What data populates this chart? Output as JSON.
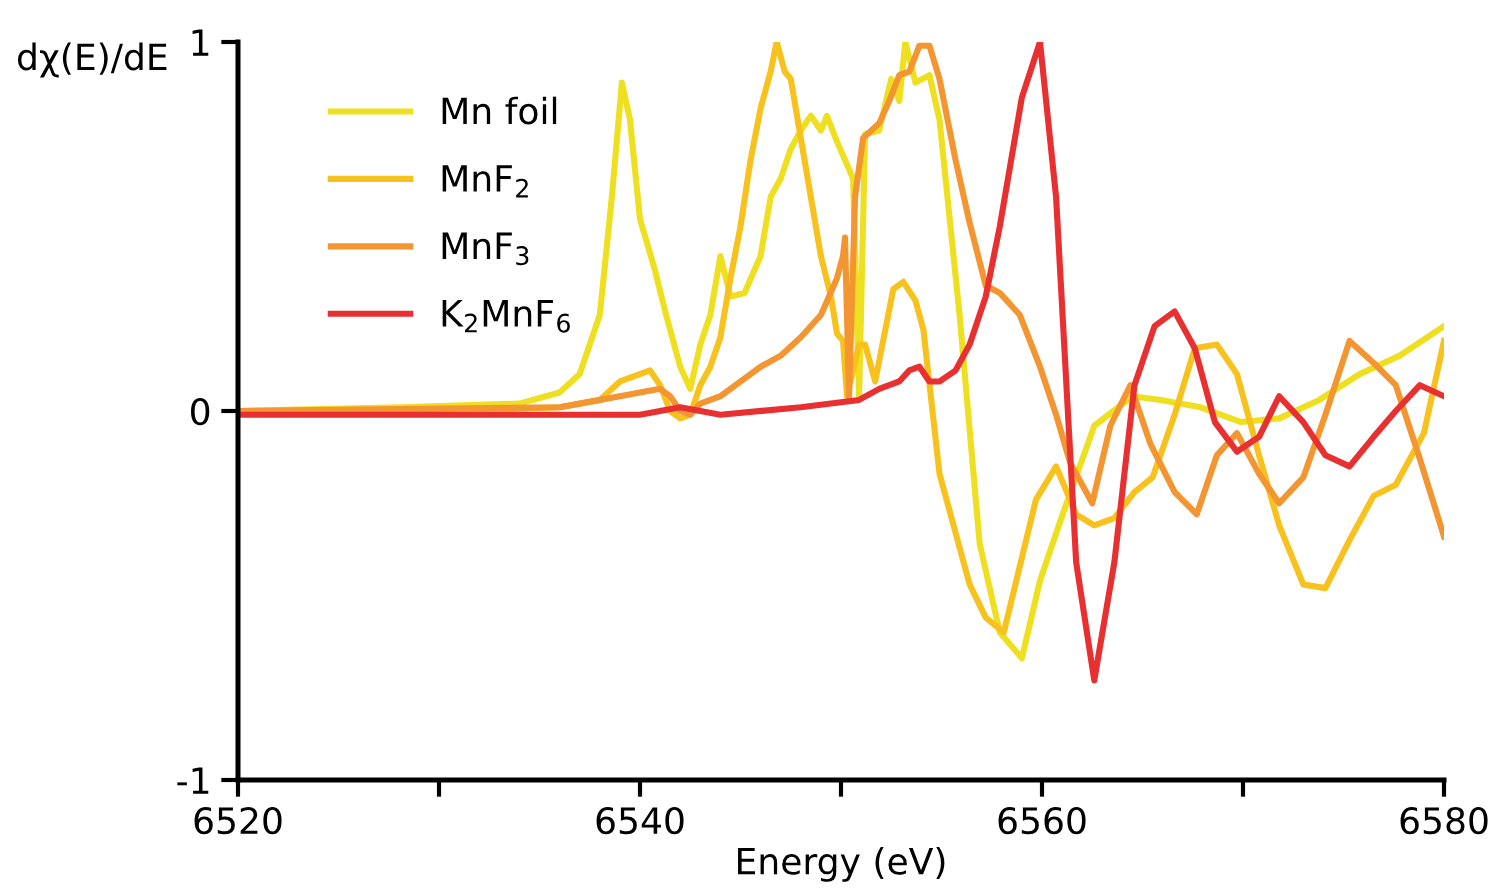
{
  "chart_data": {
    "type": "line",
    "xlabel": "Energy (eV)",
    "ylabel": "dχ(E)/dE",
    "xlim": [
      6520,
      6580
    ],
    "ylim": [
      -1,
      1
    ],
    "xticks": [
      6520,
      {
        "value": 6530,
        "label": null
      },
      6540,
      {
        "value": 6550,
        "label": null
      },
      6560,
      {
        "value": 6570,
        "label": null
      },
      6580
    ],
    "yticks": [
      {
        "value": -1,
        "label": "-1"
      },
      0,
      1
    ],
    "grid": false,
    "legend": "top left",
    "marker": "none",
    "line_style": "solid",
    "series": [
      {
        "name": "Mn foil",
        "color": "#eee020",
        "x": [
          6520,
          6528.1,
          6534.0,
          6536.0,
          6537.0,
          6538.0,
          6538.6,
          6539.1,
          6539.5,
          6540.0,
          6540.7,
          6541.3,
          6542.0,
          6542.5,
          6543.0,
          6543.5,
          6544.0,
          6544.5,
          6545.2,
          6546.0,
          6546.5,
          6547.0,
          6547.5,
          6548.0,
          6548.5,
          6549.0,
          6549.3,
          6549.8,
          6550.2,
          6550.6,
          6550.9,
          6551.2,
          6551.9,
          6552.5,
          6552.9,
          6553.2,
          6553.7,
          6554.4,
          6554.9,
          6555.9,
          6556.9,
          6557.9,
          6559.0,
          6559.9,
          6560.9,
          6562.6,
          6564.5,
          6565.9,
          6567.9,
          6569.9,
          6571.8,
          6573.8,
          6575.8,
          6577.8,
          6580.0
        ],
        "values": [
          0,
          0.01,
          0.02,
          0.05,
          0.1,
          0.26,
          0.58,
          0.89,
          0.79,
          0.52,
          0.39,
          0.26,
          0.12,
          0.06,
          0.18,
          0.26,
          0.42,
          0.31,
          0.32,
          0.42,
          0.58,
          0.63,
          0.71,
          0.76,
          0.8,
          0.76,
          0.8,
          0.73,
          0.68,
          0.63,
          0.04,
          0.75,
          0.76,
          0.9,
          0.84,
          1.0,
          0.89,
          0.91,
          0.79,
          0.26,
          -0.36,
          -0.6,
          -0.67,
          -0.46,
          -0.3,
          -0.04,
          0.04,
          0.03,
          0.01,
          -0.03,
          -0.02,
          0.03,
          0.1,
          0.15,
          0.23
        ]
      },
      {
        "name": "MnF$_{2}$",
        "color": "#f8c21e",
        "x": [
          6520,
          6530,
          6536,
          6538,
          6539,
          6540.0,
          6540.5,
          6541.0,
          6541.5,
          6542.0,
          6542.5,
          6543.0,
          6543.5,
          6544.0,
          6544.5,
          6545.0,
          6545.5,
          6546.0,
          6546.5,
          6546.8,
          6547.2,
          6547.5,
          6548.0,
          6548.5,
          6549.0,
          6549.5,
          6549.8,
          6550.1,
          6550.3,
          6550.9,
          6551.2,
          6551.7,
          6552.6,
          6553.1,
          6553.7,
          6554.1,
          6554.9,
          6556.4,
          6557.2,
          6558.1,
          6559.7,
          6560.7,
          6561.7,
          6562.6,
          6563.6,
          6564.6,
          6565.5,
          6566.6,
          6567.6,
          6568.7,
          6569.7,
          6570.8,
          6571.8,
          6573.0,
          6574.1,
          6575.3,
          6576.5,
          6577.6,
          6579.0,
          6580
        ],
        "values": [
          0,
          0,
          0.01,
          0.03,
          0.08,
          0.1,
          0.11,
          0.07,
          0.0,
          -0.02,
          -0.01,
          0.07,
          0.12,
          0.2,
          0.36,
          0.5,
          0.68,
          0.82,
          0.92,
          1.0,
          0.92,
          0.9,
          0.74,
          0.58,
          0.42,
          0.31,
          0.21,
          0.19,
          0.04,
          0.18,
          0.18,
          0.08,
          0.33,
          0.35,
          0.3,
          0.22,
          -0.17,
          -0.47,
          -0.56,
          -0.6,
          -0.24,
          -0.15,
          -0.28,
          -0.31,
          -0.29,
          -0.22,
          -0.18,
          -0.01,
          0.17,
          0.18,
          0.1,
          -0.12,
          -0.31,
          -0.47,
          -0.48,
          -0.35,
          -0.23,
          -0.2,
          -0.06,
          0.19
        ]
      },
      {
        "name": "MnF$_{3}$",
        "color": "#f39530",
        "x": [
          6520,
          6536,
          6537.0,
          6539.0,
          6540.0,
          6541.0,
          6541.5,
          6542.0,
          6542.5,
          6543.0,
          6544.0,
          6545.0,
          6546.0,
          6547.0,
          6548.0,
          6549.0,
          6549.8,
          6550.1,
          6550.2,
          6550.4,
          6550.7,
          6551.1,
          6551.9,
          6552.4,
          6552.9,
          6553.4,
          6553.9,
          6554.4,
          6554.9,
          6555.7,
          6556.4,
          6557.2,
          6557.9,
          6558.9,
          6559.9,
          6560.7,
          6561.4,
          6562.5,
          6563.4,
          6564.4,
          6565.4,
          6566.6,
          6567.7,
          6568.7,
          6569.7,
          6570.8,
          6571.8,
          6573.0,
          6574.1,
          6575.3,
          6576.5,
          6577.6,
          6578.8,
          6580
        ],
        "values": [
          0,
          0.01,
          0.02,
          0.04,
          0.05,
          0.06,
          0.04,
          0.0,
          -0.01,
          0.02,
          0.04,
          0.08,
          0.12,
          0.15,
          0.2,
          0.26,
          0.36,
          0.42,
          0.47,
          0.04,
          0.58,
          0.74,
          0.78,
          0.84,
          0.91,
          0.92,
          0.99,
          0.99,
          0.9,
          0.68,
          0.51,
          0.34,
          0.32,
          0.26,
          0.12,
          -0.01,
          -0.14,
          -0.25,
          -0.04,
          0.07,
          -0.09,
          -0.22,
          -0.28,
          -0.12,
          -0.06,
          -0.17,
          -0.25,
          -0.18,
          -0.01,
          0.19,
          0.13,
          0.07,
          -0.13,
          -0.34
        ]
      },
      {
        "name": "K$_{2}$MnF$_{6}$",
        "color": "#e83030",
        "x": [
          6520,
          6530,
          6540,
          6542,
          6544,
          6548,
          6550.9,
          6551.9,
          6552.9,
          6553.4,
          6553.9,
          6554.4,
          6554.9,
          6555.7,
          6556.4,
          6557.2,
          6557.9,
          6559.0,
          6559.9,
          6560.7,
          6561.7,
          6562.6,
          6563.6,
          6564.6,
          6565.6,
          6566.6,
          6567.6,
          6568.6,
          6569.7,
          6570.8,
          6571.8,
          6573.0,
          6574.1,
          6575.3,
          6576.5,
          6577.6,
          6578.8,
          6580
        ],
        "values": [
          -0.01,
          -0.01,
          -0.01,
          0.01,
          -0.01,
          0.01,
          0.03,
          0.06,
          0.08,
          0.11,
          0.12,
          0.08,
          0.08,
          0.11,
          0.18,
          0.31,
          0.5,
          0.85,
          1.0,
          0.58,
          -0.41,
          -0.73,
          -0.41,
          0.07,
          0.23,
          0.27,
          0.17,
          -0.03,
          -0.11,
          -0.07,
          0.04,
          -0.03,
          -0.12,
          -0.15,
          -0.07,
          0.0,
          0.07,
          0.04
        ]
      }
    ]
  }
}
